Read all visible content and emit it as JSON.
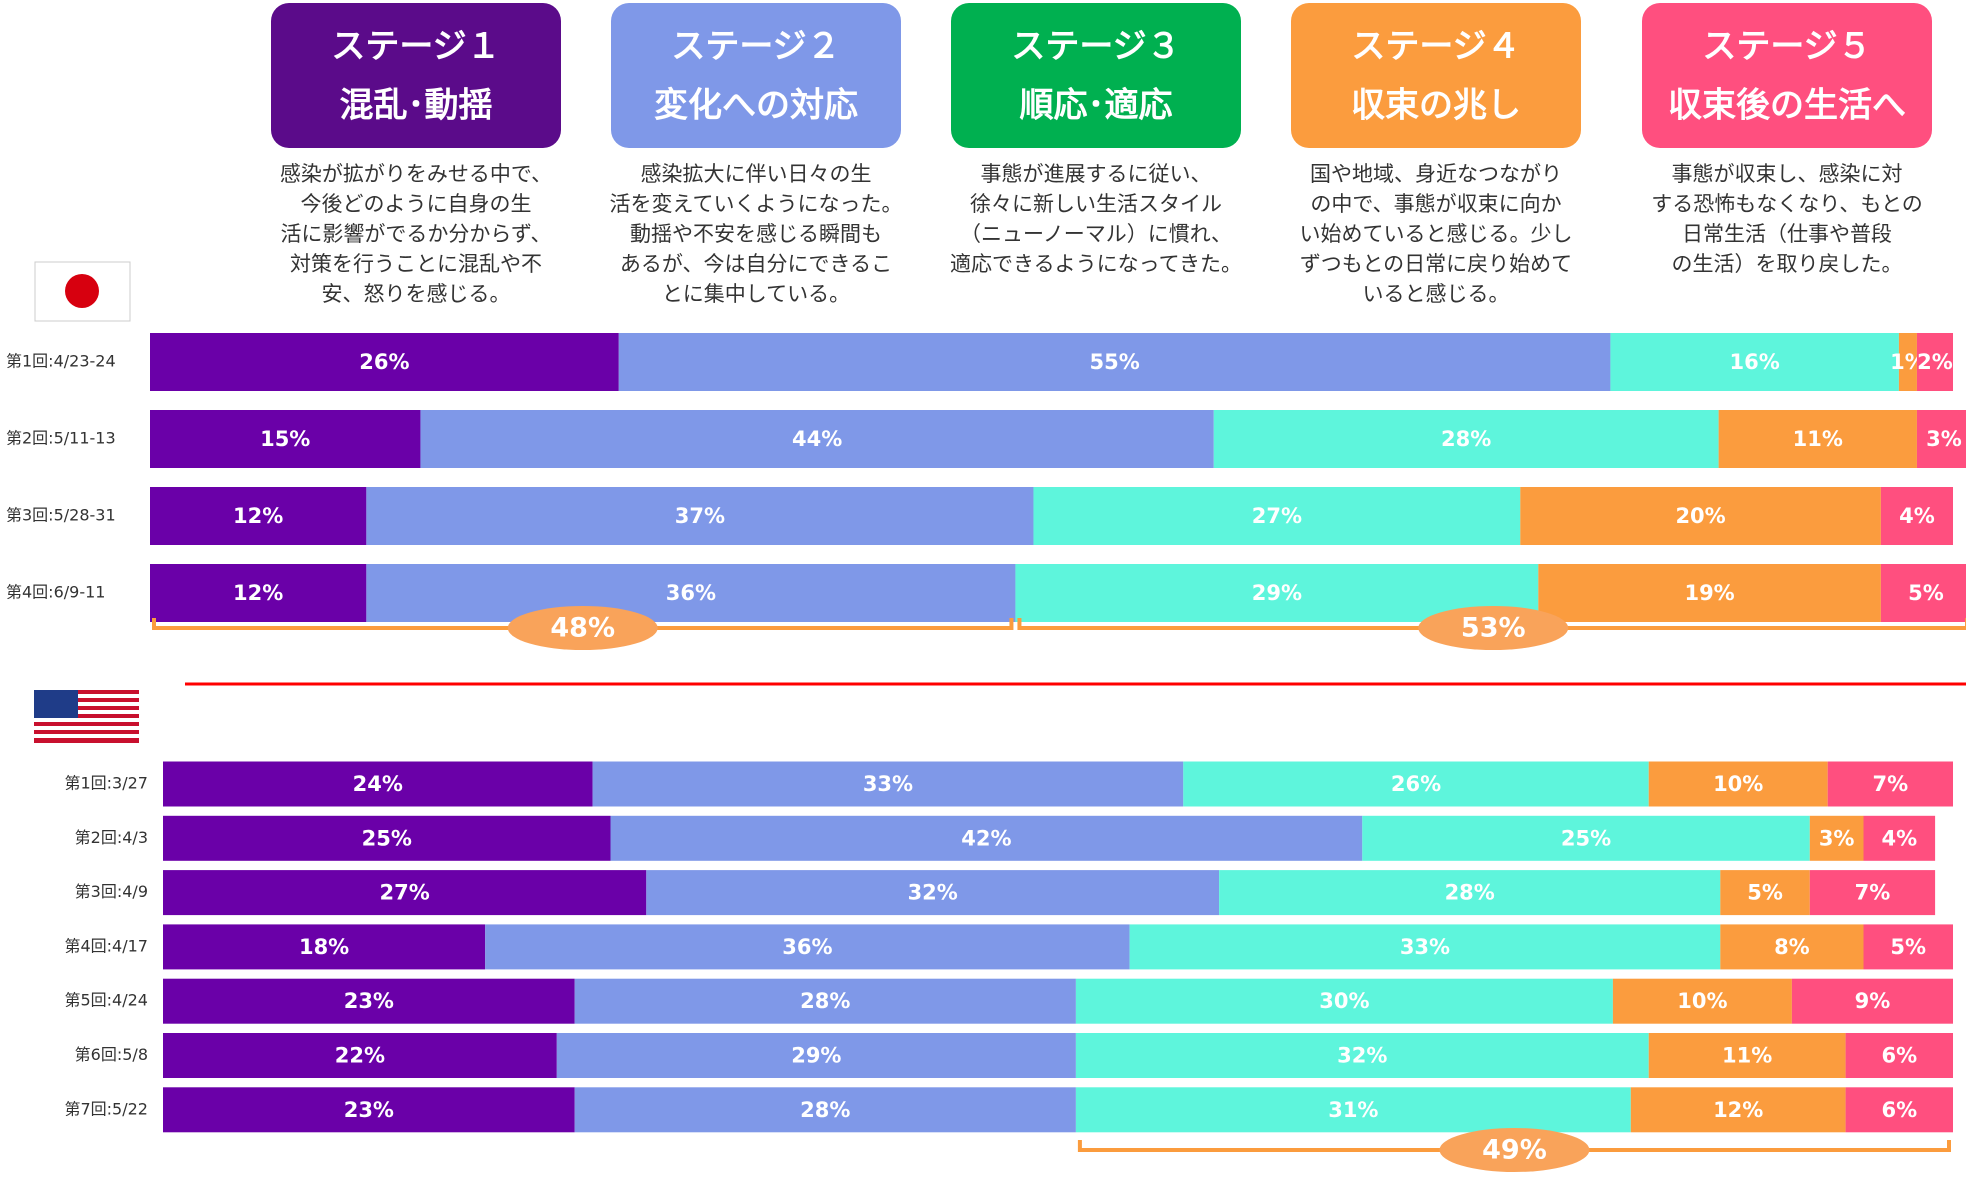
{
  "stages": [
    {
      "subtitle": "混乱･動揺",
      "color": "#5b0b8a",
      "description": [
        "感染が拡がりをみせる中で、",
        "今後どのように自身の生",
        "活に影響がでるか分からず、",
        "対策を行うことに混乱や不",
        "安、怒りを感じる。"
      ]
    },
    {
      "subtitle": "変化への対応",
      "color": "#7f98e8",
      "description": [
        "感染拡大に伴い日々の生",
        "活を変えていくようになった。",
        "動揺や不安を感じる瞬間も",
        "あるが、今は自分にできるこ",
        "とに集中している。"
      ]
    },
    {
      "subtitle": "順応･適応",
      "color": "#00b050",
      "description": [
        "事態が進展するに従い、",
        "徐々に新しい生活スタイル",
        "（ニューノーマル）に慣れ、",
        "適応できるようになってきた。"
      ]
    },
    {
      "subtitle": "収束の兆し",
      "color": "#fb9c3e",
      "description": [
        "国や地域、身近なつながり",
        "の中で、事態が収束に向か",
        "い始めていると感じる。少し",
        "ずつもとの日常に戻り始めて",
        "いると感じる。"
      ]
    },
    {
      "subtitle": "収束後の生活へ",
      "color": "#ff4f7f",
      "description": [
        "事態が収束し、感染に対",
        "する恐怖もなくなり、もとの",
        "日常生活（仕事や普段",
        "の生活）を取り戻した。"
      ]
    }
  ],
  "chart_data": [
    {
      "type": "bar",
      "orientation": "horizontal",
      "stacked": true,
      "xlim": [
        0,
        100
      ],
      "categories": [
        "第1回:4/23-24",
        "第2回:5/11-13",
        "第3回:5/28-31",
        "第4回:6/9-11"
      ],
      "series": [
        {
          "name": "ステージ１",
          "color": "#6a00a8",
          "values": [
            26,
            15,
            12,
            12
          ],
          "value_labels": [
            "26%",
            "15%",
            "12%",
            "12%"
          ]
        },
        {
          "name": "ステージ２",
          "color": "#7f98e8",
          "values": [
            55,
            44,
            37,
            36
          ],
          "value_labels": [
            "55%",
            "44%",
            "37%",
            "36%"
          ]
        },
        {
          "name": "ステージ３",
          "color": "#5ef5dc",
          "values": [
            16,
            28,
            27,
            29
          ],
          "value_labels": [
            "16%",
            "28%",
            "27%",
            "29%"
          ]
        },
        {
          "name": "ステージ４",
          "color": "#fb9c3e",
          "values": [
            1,
            11,
            20,
            19
          ],
          "value_labels": [
            "1%",
            "11%",
            "20%",
            "19%"
          ]
        },
        {
          "name": "ステージ５",
          "color": "#ff4f7f",
          "values": [
            2,
            3,
            4,
            5
          ],
          "value_labels": [
            "2%",
            "3%",
            "4%",
            "5%"
          ]
        }
      ],
      "annotations": [
        "48%",
        "53%"
      ]
    },
    {
      "type": "bar",
      "orientation": "horizontal",
      "stacked": true,
      "xlim": [
        0,
        100
      ],
      "categories": [
        "第1回:3/27",
        "第2回:4/3",
        "第3回:4/9",
        "第4回:4/17",
        "第5回:4/24",
        "第6回:5/8",
        "第7回:5/22"
      ],
      "series": [
        {
          "color": "#6a00a8",
          "values": [
            24,
            25,
            27,
            18,
            23,
            22,
            23
          ],
          "value_labels": [
            "24%",
            "25%",
            "27%",
            "18%",
            "23%",
            "22%",
            "23%"
          ]
        },
        {
          "color": "#7f98e8",
          "values": [
            33,
            42,
            32,
            36,
            28,
            29,
            28
          ],
          "value_labels": [
            "33%",
            "42%",
            "32%",
            "36%",
            "28%",
            "29%",
            "28%"
          ]
        },
        {
          "color": "#5ef5dc",
          "values": [
            26,
            25,
            28,
            33,
            30,
            32,
            31
          ],
          "value_labels": [
            "26%",
            "25%",
            "28%",
            "33%",
            "30%",
            "32%",
            "31%"
          ]
        },
        {
          "color": "#fb9c3e",
          "values": [
            10,
            3,
            5,
            8,
            10,
            11,
            12
          ],
          "value_labels": [
            "10%",
            "3%",
            "5%",
            "8%",
            "10%",
            "11%",
            "12%"
          ]
        },
        {
          "color": "#ff4f7f",
          "values": [
            7,
            4,
            7,
            5,
            9,
            6,
            6
          ],
          "value_labels": [
            "7%",
            "4%",
            "7%",
            "5%",
            "9%",
            "6%",
            "6%"
          ]
        }
      ],
      "annotations": [
        "49%"
      ]
    }
  ]
}
